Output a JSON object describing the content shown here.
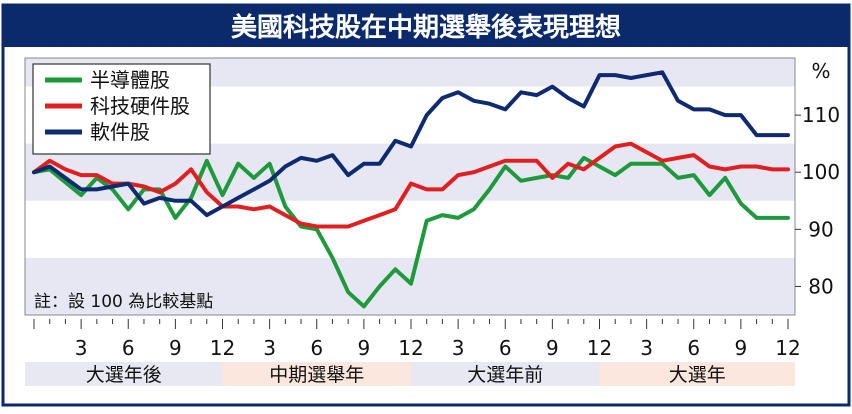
{
  "header": {
    "title": "美國科技股在中期選舉後表現理想",
    "bg_color": "#0a2a6b",
    "title_color": "#ffffff"
  },
  "note": "註：設 100 為比較基點",
  "chart_data": {
    "type": "line",
    "title": "美國科技股在中期選舉後表現理想",
    "unit_label": "%",
    "ylim": [
      75,
      120
    ],
    "y_ticks": [
      80,
      90,
      100,
      110
    ],
    "x_ticks": [
      "3",
      "6",
      "9",
      "12",
      "3",
      "6",
      "9",
      "12",
      "3",
      "6",
      "9",
      "12",
      "3",
      "6",
      "9",
      "12"
    ],
    "x_range": [
      0,
      48
    ],
    "periods": [
      {
        "label": "大選年後",
        "color": "#e8e8f2"
      },
      {
        "label": "中期選舉年",
        "color": "#fbe7dd"
      },
      {
        "label": "大選年前",
        "color": "#e8e8f2"
      },
      {
        "label": "大選年",
        "color": "#fbe7dd"
      }
    ],
    "band_color": "#e6e7f2",
    "legend_position": "top-left",
    "series": [
      {
        "name": "半導體股",
        "color": "#1e9a3c",
        "x": [
          0,
          1,
          3,
          4,
          5,
          6,
          7,
          8,
          9,
          10,
          11,
          12,
          13,
          14,
          15,
          16,
          17,
          18,
          19,
          20,
          21,
          22,
          23,
          24,
          25,
          26,
          27,
          28,
          29,
          30,
          31,
          32,
          33,
          34,
          35,
          36,
          37,
          38,
          39,
          40,
          41,
          42,
          43,
          44,
          45,
          46,
          47,
          48
        ],
        "y": [
          100,
          100.5,
          96,
          99,
          97,
          93.5,
          97,
          97,
          92,
          95.5,
          102,
          96,
          101.5,
          99,
          101.5,
          94,
          90.5,
          90,
          85,
          79,
          76.5,
          80,
          83,
          80.5,
          91.5,
          92.5,
          92,
          93.5,
          97,
          101,
          98.5,
          99,
          99.5,
          99,
          102.5,
          101,
          99.5,
          101.5,
          101.5,
          101.5,
          99,
          99.5,
          96,
          99,
          94.5,
          92,
          92,
          92
        ]
      },
      {
        "name": "科技硬件股",
        "color": "#e02020",
        "x": [
          0,
          1,
          2,
          3,
          4,
          5,
          6,
          7,
          8,
          9,
          10,
          11,
          12,
          13,
          14,
          15,
          16,
          17,
          18,
          19,
          20,
          21,
          22,
          23,
          24,
          25,
          26,
          27,
          28,
          29,
          30,
          31,
          32,
          33,
          34,
          35,
          36,
          37,
          38,
          39,
          40,
          41,
          42,
          43,
          44,
          45,
          46,
          47,
          48
        ],
        "y": [
          100,
          102,
          100.5,
          99.5,
          99.5,
          98,
          98,
          97.5,
          96.5,
          98,
          100.5,
          96.5,
          94,
          94,
          93.5,
          94,
          92.5,
          91,
          90.5,
          90.5,
          90.5,
          91.5,
          92.5,
          93.5,
          98,
          97,
          97,
          99.5,
          100,
          101,
          102,
          102,
          102,
          99,
          101.5,
          100.5,
          102.5,
          104.5,
          105,
          103.5,
          102,
          102.5,
          103,
          101,
          100.5,
          101,
          101,
          100.5,
          100.5
        ]
      },
      {
        "name": "軟件股",
        "color": "#0e2a70",
        "x": [
          0,
          1,
          3,
          4,
          5,
          6,
          7,
          8,
          9,
          10,
          11,
          12,
          13,
          14,
          15,
          16,
          17,
          18,
          19,
          20,
          21,
          22,
          23,
          24,
          25,
          26,
          27,
          28,
          29,
          30,
          31,
          32,
          33,
          34,
          35,
          36,
          37,
          38,
          39,
          40,
          41,
          42,
          43,
          44,
          45,
          46,
          47,
          48
        ],
        "y": [
          100,
          101,
          97,
          97,
          97.5,
          98,
          94.5,
          95.5,
          95,
          95,
          92.5,
          94,
          95.5,
          97,
          98.5,
          101,
          102.5,
          102,
          103,
          99.5,
          101.5,
          101.5,
          105.5,
          104.5,
          110,
          113,
          114,
          112.5,
          112,
          111,
          114,
          113.5,
          115,
          113,
          111.5,
          117,
          117,
          116.5,
          117,
          117.5,
          112.5,
          111,
          111,
          110,
          110,
          106.5,
          106.5,
          106.5
        ]
      }
    ]
  }
}
